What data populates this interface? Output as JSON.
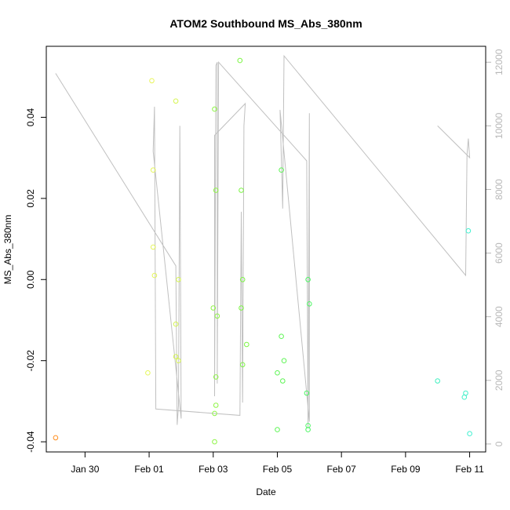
{
  "chart_data": {
    "type": "scatter",
    "title": "ATOM2 Southbound MS_Abs_380nm",
    "xlabel": "Date",
    "ylabel": "MS_Abs_380nm",
    "x_ticks": [
      "Jan 30",
      "Feb 01",
      "Feb 03",
      "Feb 05",
      "Feb 07",
      "Feb 09",
      "Feb 11"
    ],
    "y_ticks": [
      "-0.04",
      "-0.02",
      "0.00",
      "0.02",
      "0.04"
    ],
    "y_right_ticks": [
      "0",
      "2000",
      "4000",
      "6000",
      "8000",
      "10000",
      "12000"
    ],
    "xlim": [
      "2024-01-28T19:00",
      "2024-02-11T12:00"
    ],
    "ylim": [
      -0.0425,
      0.0575
    ],
    "y_right_lim": [
      -250,
      12500
    ],
    "grid": false,
    "colors": {
      "line": "#c0c0c0",
      "right_axis": "#b8b8b8",
      "frame": "#000000"
    },
    "points": [
      {
        "x": "2024-01-29T02:00",
        "y": -0.039,
        "color": "#ff8c1a"
      },
      {
        "x": "2024-01-31T23:00",
        "y": -0.023,
        "color": "#e4f75b"
      },
      {
        "x": "2024-02-01T02:00",
        "y": 0.049,
        "color": "#e8f55a"
      },
      {
        "x": "2024-02-01T03:00",
        "y": 0.027,
        "color": "#e4f55a"
      },
      {
        "x": "2024-02-01T03:00",
        "y": 0.008,
        "color": "#e4f55a"
      },
      {
        "x": "2024-02-01T04:00",
        "y": 0.001,
        "color": "#e4f55a"
      },
      {
        "x": "2024-02-01T20:00",
        "y": 0.044,
        "color": "#d6f552"
      },
      {
        "x": "2024-02-01T20:00",
        "y": -0.011,
        "color": "#d6f552"
      },
      {
        "x": "2024-02-01T20:00",
        "y": -0.019,
        "color": "#d6f552"
      },
      {
        "x": "2024-02-01T22:00",
        "y": -0.02,
        "color": "#d6f552"
      },
      {
        "x": "2024-02-01T22:00",
        "y": 0.0,
        "color": "#d6f552"
      },
      {
        "x": "2024-02-03T00:00",
        "y": -0.007,
        "color": "#8ef545"
      },
      {
        "x": "2024-02-03T01:00",
        "y": 0.042,
        "color": "#8ef545"
      },
      {
        "x": "2024-02-03T01:00",
        "y": -0.033,
        "color": "#8ef545"
      },
      {
        "x": "2024-02-03T01:00",
        "y": -0.04,
        "color": "#8ef545"
      },
      {
        "x": "2024-02-03T02:00",
        "y": -0.031,
        "color": "#8ef545"
      },
      {
        "x": "2024-02-03T02:00",
        "y": -0.024,
        "color": "#8ef545"
      },
      {
        "x": "2024-02-03T02:00",
        "y": 0.022,
        "color": "#8ef545"
      },
      {
        "x": "2024-02-03T03:00",
        "y": -0.009,
        "color": "#8ef545"
      },
      {
        "x": "2024-02-03T20:00",
        "y": 0.054,
        "color": "#7df545"
      },
      {
        "x": "2024-02-03T21:00",
        "y": 0.022,
        "color": "#7df545"
      },
      {
        "x": "2024-02-03T21:00",
        "y": -0.007,
        "color": "#7df545"
      },
      {
        "x": "2024-02-03T22:00",
        "y": -0.021,
        "color": "#7df545"
      },
      {
        "x": "2024-02-03T22:00",
        "y": 0.0,
        "color": "#7df545"
      },
      {
        "x": "2024-02-04T01:00",
        "y": -0.016,
        "color": "#7df545"
      },
      {
        "x": "2024-02-05T00:00",
        "y": -0.023,
        "color": "#5ef555"
      },
      {
        "x": "2024-02-05T00:00",
        "y": -0.037,
        "color": "#5ef555"
      },
      {
        "x": "2024-02-05T03:00",
        "y": 0.027,
        "color": "#5ef555"
      },
      {
        "x": "2024-02-05T03:00",
        "y": -0.014,
        "color": "#5ef555"
      },
      {
        "x": "2024-02-05T04:00",
        "y": -0.025,
        "color": "#5ef555"
      },
      {
        "x": "2024-02-05T05:00",
        "y": -0.02,
        "color": "#5ef555"
      },
      {
        "x": "2024-02-05T22:00",
        "y": -0.028,
        "color": "#4ef565"
      },
      {
        "x": "2024-02-05T23:00",
        "y": 0.0,
        "color": "#4ef565"
      },
      {
        "x": "2024-02-05T23:00",
        "y": -0.037,
        "color": "#4ef565"
      },
      {
        "x": "2024-02-05T23:00",
        "y": -0.036,
        "color": "#4ef565"
      },
      {
        "x": "2024-02-06T00:00",
        "y": -0.006,
        "color": "#4ef565"
      },
      {
        "x": "2024-02-10T00:00",
        "y": -0.025,
        "color": "#40f0c0"
      },
      {
        "x": "2024-02-10T20:00",
        "y": -0.029,
        "color": "#40f0c8"
      },
      {
        "x": "2024-02-10T21:00",
        "y": -0.028,
        "color": "#40f0c8"
      },
      {
        "x": "2024-02-10T23:00",
        "y": 0.012,
        "color": "#40f0d0"
      },
      {
        "x": "2024-02-11T00:00",
        "y": -0.038,
        "color": "#40f0d0"
      }
    ],
    "line_series": [
      {
        "x": "2024-01-29T02:00",
        "y": 11650
      },
      {
        "x": "2024-02-01T20:00",
        "y": 5600
      },
      {
        "x": "2024-02-01T21:00",
        "y": 600
      },
      {
        "x": "2024-02-01T22:00",
        "y": 1200
      },
      {
        "x": "2024-02-01T23:00",
        "y": 10000
      },
      {
        "x": "2024-02-02T00:00",
        "y": 800
      },
      {
        "x": "2024-02-01T03:00",
        "y": 9200
      },
      {
        "x": "2024-02-01T04:00",
        "y": 10600
      },
      {
        "x": "2024-02-01T05:00",
        "y": 1100
      },
      {
        "x": "2024-02-03T20:00",
        "y": 900
      },
      {
        "x": "2024-02-03T21:00",
        "y": 7300
      },
      {
        "x": "2024-02-03T22:00",
        "y": 1300
      },
      {
        "x": "2024-02-03T23:00",
        "y": 10000
      },
      {
        "x": "2024-02-04T00:00",
        "y": 10700
      },
      {
        "x": "2024-02-03T01:00",
        "y": 9700
      },
      {
        "x": "2024-02-03T01:00",
        "y": 1500
      },
      {
        "x": "2024-02-03T02:00",
        "y": 11900
      },
      {
        "x": "2024-02-03T03:00",
        "y": 12000
      },
      {
        "x": "2024-02-03T03:00",
        "y": 1900
      },
      {
        "x": "2024-02-03T04:00",
        "y": 12000
      },
      {
        "x": "2024-02-05T22:00",
        "y": 8900
      },
      {
        "x": "2024-02-05T23:00",
        "y": 500
      },
      {
        "x": "2024-02-06T00:00",
        "y": 10400
      },
      {
        "x": "2024-02-06T00:00",
        "y": 700
      },
      {
        "x": "2024-02-05T02:00",
        "y": 10500
      },
      {
        "x": "2024-02-05T04:00",
        "y": 7400
      },
      {
        "x": "2024-02-05T05:00",
        "y": 12200
      },
      {
        "x": "2024-02-10T21:00",
        "y": 5300
      },
      {
        "x": "2024-02-10T22:00",
        "y": 9100
      },
      {
        "x": "2024-02-10T23:00",
        "y": 9600
      },
      {
        "x": "2024-02-11T00:00",
        "y": 9000
      },
      {
        "x": "2024-02-10T00:00",
        "y": 10000
      }
    ]
  }
}
